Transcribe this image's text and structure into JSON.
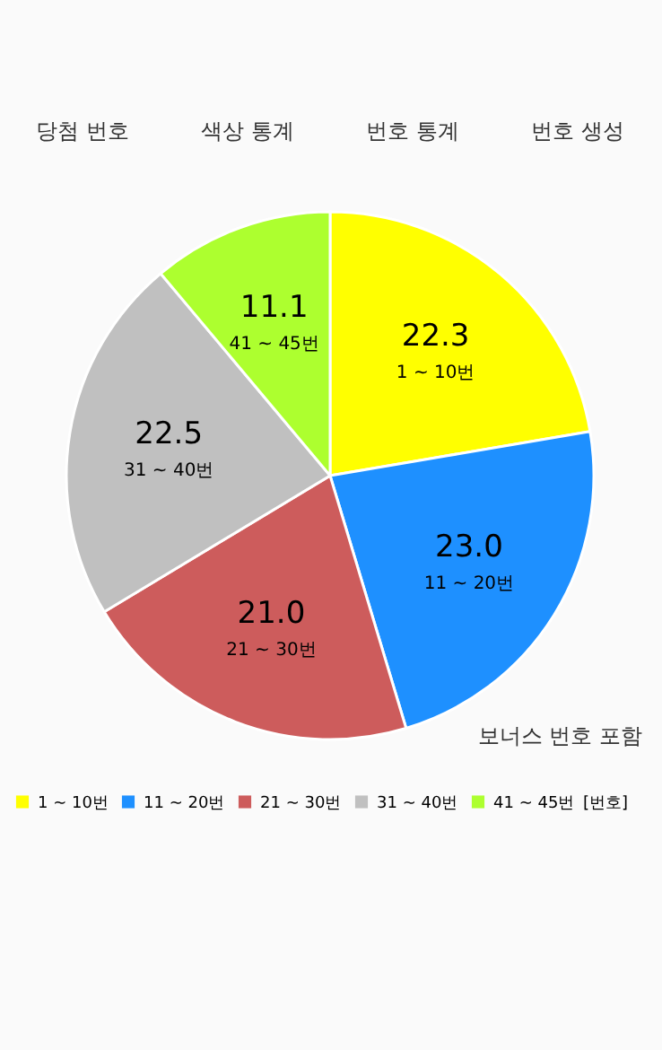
{
  "chart_data": {
    "type": "pie",
    "categories": [
      "1 ~ 10번",
      "11 ~ 20번",
      "21 ~ 30번",
      "31 ~ 40번",
      "41 ~ 45번"
    ],
    "values": [
      22.3,
      23.0,
      21.0,
      22.5,
      11.1
    ],
    "colors": [
      "#ffff00",
      "#1e90ff",
      "#cd5c5c",
      "#c0c0c0",
      "#adff2f"
    ],
    "value_labels": [
      "22.3",
      "23.0",
      "21.0",
      "22.5",
      "11.1"
    ],
    "legend": "bottom left",
    "legend_title": "[번호]",
    "annotations": [
      "당첨 번호",
      "색상 통계",
      "번호 통계",
      "번호 생성",
      "보너스 번호 포함"
    ]
  }
}
